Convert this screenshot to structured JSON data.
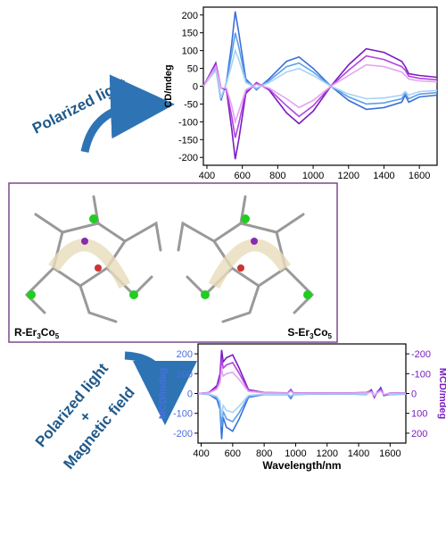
{
  "chart_data": [
    {
      "type": "line",
      "ylabel": "CD/mdeg",
      "x": [
        380,
        450,
        480,
        510,
        540,
        560,
        580,
        620,
        680,
        750,
        850,
        920,
        1000,
        1100,
        1200,
        1300,
        1400,
        1500,
        1520,
        1540,
        1600,
        1700
      ],
      "xlim": [
        380,
        1700
      ],
      "xticks": [
        400,
        600,
        800,
        1000,
        1200,
        1400,
        1600
      ],
      "ylim": [
        -222,
        222
      ],
      "yticks": [
        -200,
        -150,
        -100,
        -50,
        0,
        50,
        100,
        150,
        200
      ],
      "series": [
        {
          "color": "#3a70d8",
          "values": [
            0,
            50,
            -40,
            10,
            120,
            210,
            150,
            20,
            -10,
            20,
            70,
            82,
            50,
            0,
            -40,
            -65,
            -60,
            -45,
            -25,
            -45,
            -30,
            -25
          ]
        },
        {
          "color": "#5aa0ea",
          "values": [
            0,
            48,
            -35,
            10,
            90,
            150,
            110,
            15,
            -8,
            15,
            55,
            65,
            40,
            0,
            -30,
            -50,
            -47,
            -35,
            -20,
            -35,
            -22,
            -18
          ]
        },
        {
          "color": "#a8d2f6",
          "values": [
            0,
            45,
            -30,
            8,
            60,
            100,
            75,
            10,
            -5,
            10,
            40,
            50,
            30,
            0,
            -22,
            -35,
            -33,
            -25,
            -15,
            -25,
            -15,
            -12
          ]
        },
        {
          "color": "#7a1cc0",
          "values": [
            0,
            65,
            -5,
            -10,
            -120,
            -205,
            -150,
            -20,
            10,
            -10,
            -75,
            -105,
            -70,
            0,
            60,
            105,
            95,
            70,
            55,
            35,
            30,
            25
          ]
        },
        {
          "color": "#b244e2",
          "values": [
            0,
            60,
            -5,
            -8,
            -85,
            -145,
            -105,
            -15,
            8,
            -8,
            -55,
            -85,
            -55,
            0,
            45,
            85,
            75,
            55,
            45,
            28,
            22,
            18
          ]
        },
        {
          "color": "#e4a4f2",
          "values": [
            0,
            55,
            -5,
            -5,
            -55,
            -100,
            -70,
            -10,
            5,
            -5,
            -35,
            -60,
            -40,
            0,
            30,
            60,
            55,
            40,
            30,
            20,
            15,
            12
          ]
        }
      ]
    },
    {
      "type": "line",
      "ylabel": "MCD/mdeg",
      "y2label": "MCD/mdeg",
      "xlabel": "Wavelength/nm",
      "ylabel_color": "#4a6ee0",
      "y2label_color": "#7a1cc0",
      "x": [
        380,
        450,
        500,
        520,
        530,
        540,
        560,
        600,
        640,
        700,
        800,
        950,
        970,
        985,
        1100,
        1300,
        1450,
        1480,
        1500,
        1520,
        1540,
        1560,
        1600,
        1700
      ],
      "xlim": [
        380,
        1700
      ],
      "xticks": [
        400,
        600,
        800,
        1000,
        1200,
        1400,
        1600
      ],
      "ylim": [
        -250,
        250
      ],
      "yticks": [
        -200,
        -100,
        0,
        100,
        200
      ],
      "y2lim": [
        250,
        -250
      ],
      "y2ticks": [
        -200,
        -100,
        0,
        100,
        200
      ],
      "series": [
        {
          "color": "#3a70d8",
          "values": [
            0,
            -5,
            -30,
            -80,
            -230,
            -120,
            -170,
            -190,
            -130,
            -20,
            -5,
            -5,
            -25,
            -5,
            -3,
            -2,
            -5,
            20,
            -15,
            5,
            30,
            -10,
            -5,
            -3
          ]
        },
        {
          "color": "#5aa0ea",
          "values": [
            0,
            -4,
            -22,
            -60,
            -170,
            -90,
            -128,
            -142,
            -98,
            -15,
            -4,
            -4,
            -18,
            -4,
            -2,
            -2,
            -4,
            15,
            -11,
            4,
            22,
            -8,
            -4,
            -2
          ]
        },
        {
          "color": "#a8d2f6",
          "values": [
            0,
            -3,
            -15,
            -40,
            -115,
            -60,
            -85,
            -95,
            -65,
            -10,
            -3,
            -3,
            -12,
            -3,
            -2,
            -1,
            -3,
            10,
            -8,
            3,
            15,
            -5,
            -3,
            -2
          ]
        },
        {
          "color": "#7a1cc0",
          "axis": "y2",
          "values": [
            0,
            -5,
            -40,
            -100,
            -220,
            -160,
            -180,
            -195,
            -130,
            -20,
            -5,
            -3,
            -20,
            -3,
            -2,
            -2,
            -5,
            -15,
            20,
            -10,
            -25,
            10,
            -3,
            -2
          ]
        },
        {
          "color": "#b244e2",
          "axis": "y2",
          "values": [
            0,
            -4,
            -32,
            -80,
            -176,
            -128,
            -144,
            -156,
            -104,
            -16,
            -4,
            -2,
            -16,
            -2,
            -2,
            -2,
            -4,
            -12,
            16,
            -8,
            -20,
            8,
            -2,
            -2
          ]
        },
        {
          "color": "#e4a4f2",
          "axis": "y2",
          "values": [
            0,
            -3,
            -22,
            -55,
            -120,
            -88,
            -100,
            -107,
            -72,
            -11,
            -3,
            -2,
            -11,
            -2,
            -1,
            -1,
            -3,
            -8,
            11,
            -5,
            -14,
            5,
            -2,
            -1
          ]
        }
      ]
    }
  ],
  "labels": {
    "top_arrow": "Polarized light",
    "bottom_arrow": [
      "Polarized light",
      "+",
      "Magnetic field"
    ],
    "left_molecule": [
      "R-Er",
      "3",
      "Co",
      "5"
    ],
    "right_molecule": [
      "S-Er",
      "3",
      "Co",
      "5"
    ]
  }
}
